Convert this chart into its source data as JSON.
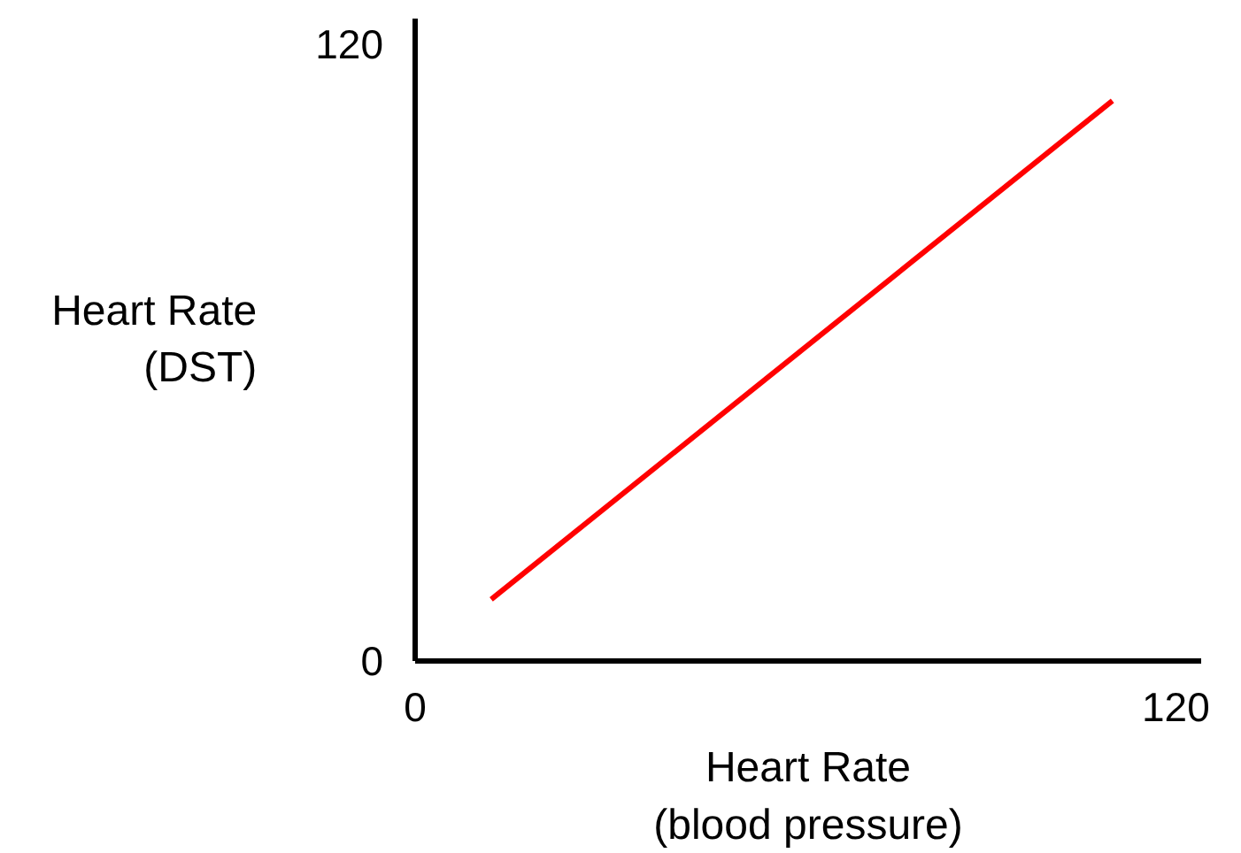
{
  "chart_data": {
    "type": "line",
    "xlabel": "Heart Rate\n(blood pressure)",
    "ylabel": "Heart Rate\n(DST)",
    "x": [
      12,
      110
    ],
    "series": [
      {
        "color": "#ff0000",
        "values": [
          12,
          109
        ]
      }
    ],
    "xlim": [
      0,
      124
    ],
    "ylim": [
      0,
      125
    ],
    "xticks": [
      0,
      120
    ],
    "yticks": [
      0,
      120
    ],
    "grid": false,
    "marker": "none",
    "line_style": "solid"
  }
}
